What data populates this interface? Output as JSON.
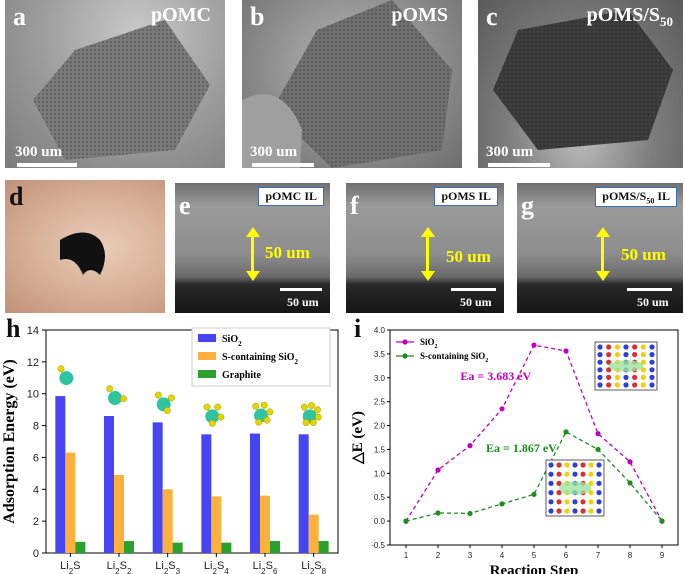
{
  "panels": {
    "a": {
      "letter": "a",
      "title": "pOMC",
      "scale": "300 um"
    },
    "b": {
      "letter": "b",
      "title": "pOMS",
      "scale": "300 um"
    },
    "c": {
      "letter": "c",
      "title": "pOMS/S",
      "title_sub": "50",
      "scale": "300 um"
    },
    "d": {
      "letter": "d"
    },
    "e": {
      "letter": "e",
      "box": "pOMC IL",
      "thickness": "50 um",
      "scale": "50 um"
    },
    "f": {
      "letter": "f",
      "box": "pOMS IL",
      "thickness": "50 um",
      "scale": "50 um"
    },
    "g": {
      "letter": "g",
      "box": "pOMS/S",
      "box_sub": "50",
      "box_tail": " IL",
      "thickness": "50 um",
      "scale": "50 um"
    },
    "h": {
      "letter": "h"
    },
    "i": {
      "letter": "i"
    }
  },
  "chart_data": [
    {
      "type": "bar",
      "panel": "h",
      "categories": [
        "Li2S",
        "Li2S2",
        "Li2S3",
        "Li2S4",
        "Li2S6",
        "Li2S8"
      ],
      "series": [
        {
          "name": "SiO2",
          "color": "#4545f2",
          "values": [
            9.85,
            8.6,
            8.2,
            7.45,
            7.5,
            7.45
          ]
        },
        {
          "name": "S-containing SiO2",
          "color": "#ffb03b",
          "values": [
            6.3,
            4.9,
            4.0,
            3.55,
            3.6,
            2.4
          ]
        },
        {
          "name": "Graphite",
          "color": "#2ca02c",
          "values": [
            0.7,
            0.75,
            0.65,
            0.65,
            0.75,
            0.75
          ]
        }
      ],
      "ylabel": "Adsorption Energy (eV)",
      "xlabel": "",
      "ylim": [
        0,
        14
      ],
      "yticks": [
        0,
        2,
        4,
        6,
        8,
        10,
        12,
        14
      ],
      "legend_position": "top-right"
    },
    {
      "type": "line",
      "panel": "i",
      "x": [
        1,
        2,
        3,
        4,
        5,
        6,
        7,
        8,
        9
      ],
      "series": [
        {
          "name": "SiO2",
          "color": "#c000c0",
          "values": [
            0.0,
            1.07,
            1.58,
            2.35,
            3.683,
            3.56,
            1.83,
            1.24,
            0.0
          ]
        },
        {
          "name": "S-containing SiO2",
          "color": "#1e8c1e",
          "values": [
            0.0,
            0.17,
            0.16,
            0.36,
            0.56,
            1.867,
            1.5,
            0.8,
            0.0
          ]
        }
      ],
      "annotations": [
        {
          "text": "Ea = 3.683 eV",
          "color": "#c000c0"
        },
        {
          "text": "Ea = 1.867 eV",
          "color": "#1e8c1e"
        }
      ],
      "xlabel": "Reaction Step",
      "ylabel": "△E (eV)",
      "xlim": [
        0.5,
        9.5
      ],
      "ylim": [
        -0.5,
        4.0
      ],
      "yticks": [
        -0.5,
        0.0,
        0.5,
        1.0,
        1.5,
        2.0,
        2.5,
        3.0,
        3.5,
        4.0
      ],
      "legend_position": "top-left"
    }
  ]
}
